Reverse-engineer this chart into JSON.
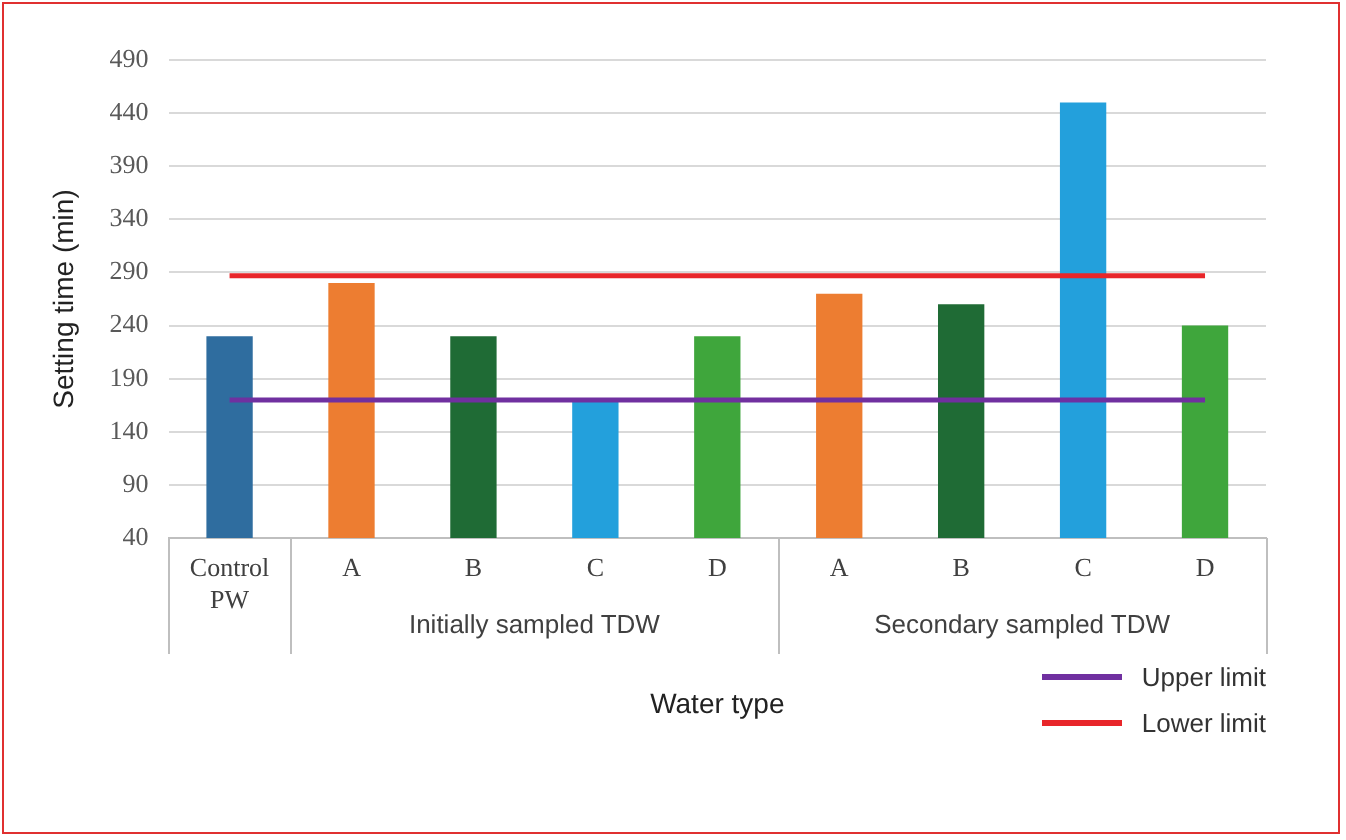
{
  "chart_data": {
    "type": "bar",
    "xlabel": "Water type",
    "ylabel": "Setting time (min)",
    "categories": [
      "Control PW",
      "A",
      "B",
      "C",
      "D",
      "A",
      "B",
      "C",
      "D"
    ],
    "values": [
      230,
      280,
      230,
      170,
      230,
      270,
      260,
      450,
      240
    ],
    "colors": [
      "#2f6d9f",
      "#ed7d31",
      "#1f6b35",
      "#23a0dc",
      "#3fa63c",
      "#ed7d31",
      "#1f6b35",
      "#23a0dc",
      "#3fa63c"
    ],
    "ylim": [
      40,
      490
    ],
    "yticks": [
      40,
      90,
      140,
      190,
      240,
      290,
      340,
      390,
      440,
      490
    ],
    "grid": "y",
    "ref_lines": [
      {
        "axis": "y",
        "value": 170,
        "label": "Upper limit",
        "color": "#7030a0"
      },
      {
        "axis": "y",
        "value": 287,
        "label": "Lower limit",
        "color": "#e8262a"
      }
    ],
    "annotations": [
      "Initially sampled TDW",
      "Secondary sampled TDW"
    ],
    "legend": "bottom right"
  }
}
